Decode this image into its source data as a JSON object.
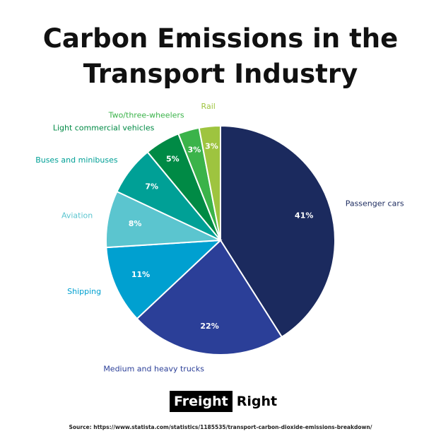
{
  "chart_data": {
    "type": "pie",
    "title": "Carbon Emissions in the Transport Industry",
    "categories": [
      "Passenger cars",
      "Medium and heavy trucks",
      "Shipping",
      "Aviation",
      "Buses and minibuses",
      "Light commercial vehicles",
      "Two/three-wheelers",
      "Rail"
    ],
    "values": [
      41,
      22,
      11,
      8,
      7,
      5,
      3,
      3
    ],
    "value_labels": [
      "41%",
      "22%",
      "11%",
      "8%",
      "7%",
      "5%",
      "3%",
      "3%"
    ],
    "colors": [
      "#1b2a5e",
      "#2b3f98",
      "#00a0d0",
      "#5bc5cf",
      "#00a096",
      "#008a45",
      "#3bb34a",
      "#9ec43f"
    ]
  },
  "brand": {
    "box": "Freight",
    "text": "Right"
  },
  "source": "Source: https://www.statista.com/statistics/1185535/transport-carbon-dioxide-emissions-breakdown/"
}
